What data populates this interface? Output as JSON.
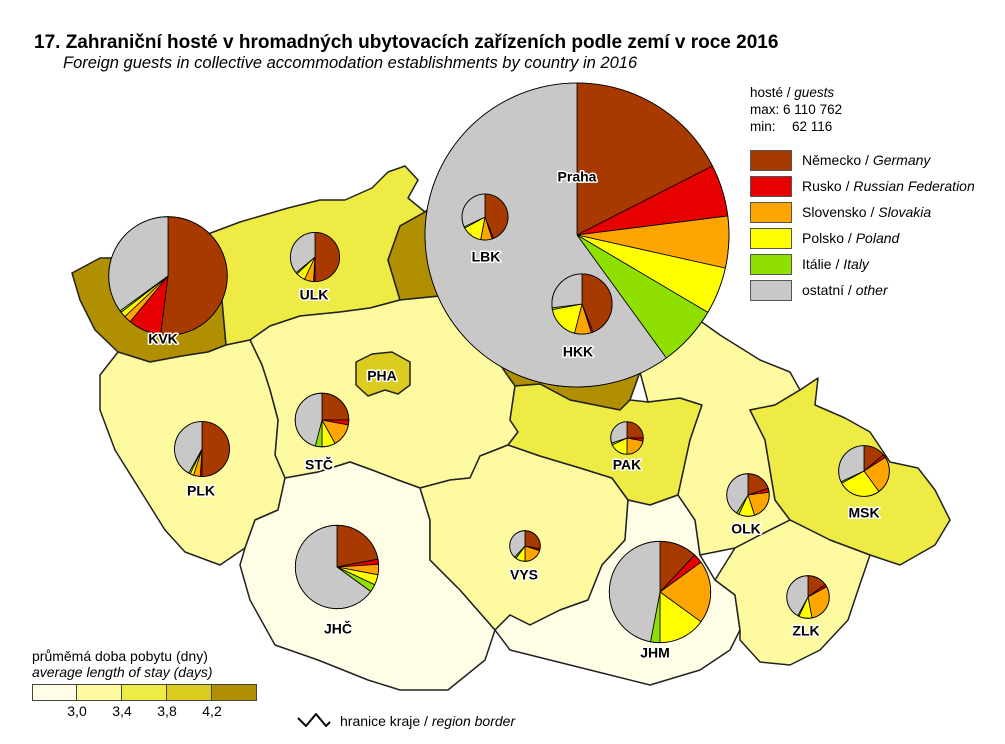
{
  "title": "17. Zahraniční hosté v hromadných ubytovacích zařízeních podle zemí v roce 2016",
  "subtitle": "Foreign guests in collective accommodation establishments by country in 2016",
  "size_legend": {
    "heading_cz": "hosté",
    "heading_en": "guests",
    "max_label": "max:",
    "max_value": "6 110 762",
    "min_label": "min:",
    "min_value": "62 116"
  },
  "countries": [
    {
      "key": "de",
      "cz": "Německo",
      "en": "Germany",
      "color": "#a83a00"
    },
    {
      "key": "ru",
      "cz": "Rusko",
      "en": "Russian Federation",
      "color": "#e60000"
    },
    {
      "key": "sk",
      "cz": "Slovensko",
      "en": "Slovakia",
      "color": "#ffa500"
    },
    {
      "key": "pl",
      "cz": "Polsko",
      "en": "Poland",
      "color": "#ffff00"
    },
    {
      "key": "it",
      "cz": "Itálie",
      "en": "Italy",
      "color": "#8fe000"
    },
    {
      "key": "other",
      "cz": "ostatní",
      "en": "other",
      "color": "#c8c8c8"
    }
  ],
  "stay_legend": {
    "title_cz": "průměmá doba pobytu (dny)",
    "title_en": "average length of stay (days)",
    "colors": [
      "#fffde6",
      "#fdfaa0",
      "#efeb45",
      "#dccc20",
      "#b09000"
    ],
    "ticks": [
      "3,0",
      "3,4",
      "3,8",
      "4,2"
    ]
  },
  "border_legend": {
    "cz": "hranice kraje",
    "en": "region border"
  },
  "regions": [
    {
      "code": "Praha",
      "class": 0,
      "guests": 6110762,
      "shares": {
        "de": 17.5,
        "ru": 5.5,
        "sk": 5.5,
        "pl": 5,
        "it": 6.5,
        "other": 60
      }
    },
    {
      "code": "KVK",
      "class": 4,
      "guests": 930000,
      "shares": {
        "de": 52,
        "ru": 9,
        "sk": 2,
        "pl": 1.5,
        "it": 0.5,
        "other": 35
      }
    },
    {
      "code": "ULK",
      "class": 2,
      "guests": 160000,
      "shares": {
        "de": 50,
        "ru": 1,
        "sk": 6,
        "pl": 6,
        "it": 1,
        "other": 36
      }
    },
    {
      "code": "LBK",
      "class": 4,
      "guests": 140000,
      "shares": {
        "de": 44,
        "ru": 1,
        "sk": 8,
        "pl": 14,
        "it": 1,
        "other": 32
      }
    },
    {
      "code": "HKK",
      "class": 4,
      "guests": 240000,
      "shares": {
        "de": 44,
        "ru": 1,
        "sk": 9,
        "pl": 18,
        "it": 1,
        "other": 27
      }
    },
    {
      "code": "PHA",
      "class": 3,
      "guests": 0,
      "shares": {}
    },
    {
      "code": "STČ",
      "class": 1,
      "guests": 190000,
      "shares": {
        "de": 25,
        "ru": 3,
        "sk": 14,
        "pl": 8,
        "it": 4,
        "other": 46
      }
    },
    {
      "code": "PLK",
      "class": 1,
      "guests": 200000,
      "shares": {
        "de": 50,
        "ru": 1,
        "sk": 4,
        "pl": 2,
        "it": 1,
        "other": 42
      }
    },
    {
      "code": "JHČ",
      "class": 0,
      "guests": 460000,
      "shares": {
        "de": 22,
        "ru": 2,
        "sk": 4,
        "pl": 4,
        "it": 3,
        "other": 65
      }
    },
    {
      "code": "VYS",
      "class": 1,
      "guests": 62116,
      "shares": {
        "de": 28,
        "ru": 2,
        "sk": 20,
        "pl": 10,
        "it": 2,
        "other": 38
      }
    },
    {
      "code": "PAK",
      "class": 2,
      "guests": 70000,
      "shares": {
        "de": 25,
        "ru": 3,
        "sk": 22,
        "pl": 18,
        "it": 2,
        "other": 30
      }
    },
    {
      "code": "JHM",
      "class": 0,
      "guests": 680000,
      "shares": {
        "de": 12,
        "ru": 3,
        "sk": 20,
        "pl": 15,
        "it": 3,
        "other": 47
      }
    },
    {
      "code": "OLK",
      "class": 1,
      "guests": 120000,
      "shares": {
        "de": 20,
        "ru": 3,
        "sk": 22,
        "pl": 12,
        "it": 2,
        "other": 41
      }
    },
    {
      "code": "MSK",
      "class": 2,
      "guests": 170000,
      "shares": {
        "de": 14,
        "ru": 2,
        "sk": 24,
        "pl": 27,
        "it": 1,
        "other": 32
      }
    },
    {
      "code": "ZLK",
      "class": 1,
      "guests": 120000,
      "shares": {
        "de": 15,
        "ru": 2,
        "sk": 30,
        "pl": 10,
        "it": 1,
        "other": 42
      }
    }
  ]
}
